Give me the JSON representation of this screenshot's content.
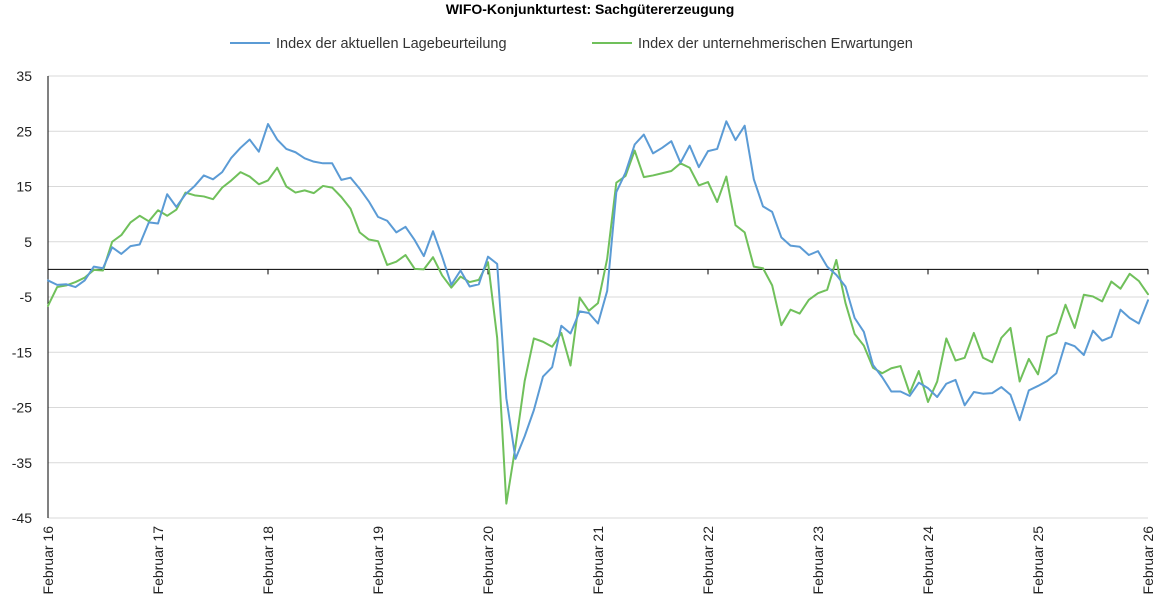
{
  "chart_data": {
    "type": "line",
    "title": "WIFO-Konjunkturtest: Sachgütererzeugung",
    "xlabel": "",
    "ylabel": "",
    "ylim": [
      -45,
      35
    ],
    "yticks": [
      35,
      25,
      15,
      5,
      -5,
      -15,
      -25,
      -35,
      -45
    ],
    "ytick_labels": [
      "35",
      "25",
      "15",
      "5",
      "-5",
      "-15",
      "-25",
      "-35",
      "-45"
    ],
    "x_start": "2016-01",
    "x_end": "2026-01",
    "xtick_labels": [
      "Februar 16",
      "Februar 17",
      "Februar 18",
      "Februar 19",
      "Februar 20",
      "Februar 21",
      "Februar 22",
      "Februar 23",
      "Februar 24",
      "Februar 25",
      "Februar 26"
    ],
    "legend_position": "top",
    "grid": true,
    "series": [
      {
        "name": "Index der aktuellen Lagebeurteilung",
        "color": "#5B9BD5",
        "values": [
          -2,
          -2.8,
          -2.7,
          -3.2,
          -2,
          0.5,
          0.2,
          4,
          2.8,
          4.2,
          4.5,
          8.5,
          8.3,
          13.6,
          11.3,
          13.6,
          15.1,
          17,
          16.3,
          17.6,
          20.2,
          22,
          23.5,
          21.3,
          26.3,
          23.5,
          21.8,
          21.2,
          20.1,
          19.5,
          19.2,
          19.2,
          16.2,
          16.6,
          14.6,
          12.3,
          9.5,
          8.8,
          6.7,
          7.7,
          5.3,
          2.4,
          6.9,
          2.3,
          -2.8,
          -0.2,
          -3.1,
          -2.7,
          2.3,
          1.0,
          -23.3,
          -34.3,
          -30.2,
          -25.5,
          -19.4,
          -17.7,
          -10.2,
          -11.6,
          -7.6,
          -7.9,
          -9.8,
          -3.9,
          14,
          17.5,
          22.6,
          24.4,
          21,
          22,
          23.2,
          19.3,
          22.4,
          18.5,
          21.4,
          21.8,
          26.8,
          23.4,
          26,
          16.3,
          11.4,
          10.4,
          5.8,
          4.3,
          4.1,
          2.6,
          3.3,
          0.5,
          -1.0,
          -3.1,
          -8.8,
          -11.3,
          -17.3,
          -19.5,
          -22.1,
          -22.1,
          -22.9,
          -20.5,
          -21.5,
          -23.1,
          -20.7,
          -20,
          -24.6,
          -22.2,
          -22.5,
          -22.4,
          -21.3,
          -22.7,
          -27.3,
          -21.9,
          -21.1,
          -20.2,
          -18.8,
          -13.3,
          -13.9,
          -15.5,
          -11.1,
          -12.9,
          -12.2,
          -7.3,
          -8.8,
          -9.8,
          -5.6
        ]
      },
      {
        "name": "Index der unternehmerischen Erwartungen",
        "color": "#70C05B",
        "values": [
          -6.6,
          -3.2,
          -2.9,
          -2.3,
          -1.5,
          -0.1,
          -0.2,
          5,
          6.2,
          8.5,
          9.7,
          8.7,
          10.7,
          9.7,
          10.8,
          13.9,
          13.4,
          13.2,
          12.7,
          14.8,
          16.1,
          17.6,
          16.8,
          15.4,
          16.1,
          18.4,
          15,
          13.9,
          14.3,
          13.8,
          15.1,
          14.8,
          13.1,
          11,
          6.7,
          5.4,
          5.1,
          0.8,
          1.4,
          2.6,
          0.1,
          0,
          2.2,
          -1.1,
          -3.3,
          -1.3,
          -2.3,
          -1.9,
          1.3,
          -12.4,
          -42.4,
          -32,
          -20.2,
          -12.5,
          -13.1,
          -14,
          -11.5,
          -17.4,
          -5.1,
          -7.5,
          -6.1,
          1.9,
          15.7,
          16.9,
          21.5,
          16.7,
          17,
          17.4,
          17.8,
          19.2,
          18.4,
          15.2,
          15.8,
          12.2,
          16.8,
          8,
          6.7,
          0.5,
          0.2,
          -2.9,
          -10.1,
          -7.3,
          -8,
          -5.5,
          -4.3,
          -3.7,
          1.7,
          -6.1,
          -11.7,
          -13.8,
          -17.8,
          -18.8,
          -17.9,
          -17.5,
          -22.4,
          -18.4,
          -24,
          -20.3,
          -12.5,
          -16.5,
          -16,
          -11.5,
          -16,
          -16.8,
          -12.4,
          -10.6,
          -20.3,
          -16.2,
          -19,
          -12.2,
          -11.5,
          -6.4,
          -10.6,
          -4.6,
          -4.9,
          -5.8,
          -2.2,
          -3.5,
          -0.8,
          -2.1,
          -4.5
        ]
      }
    ]
  }
}
